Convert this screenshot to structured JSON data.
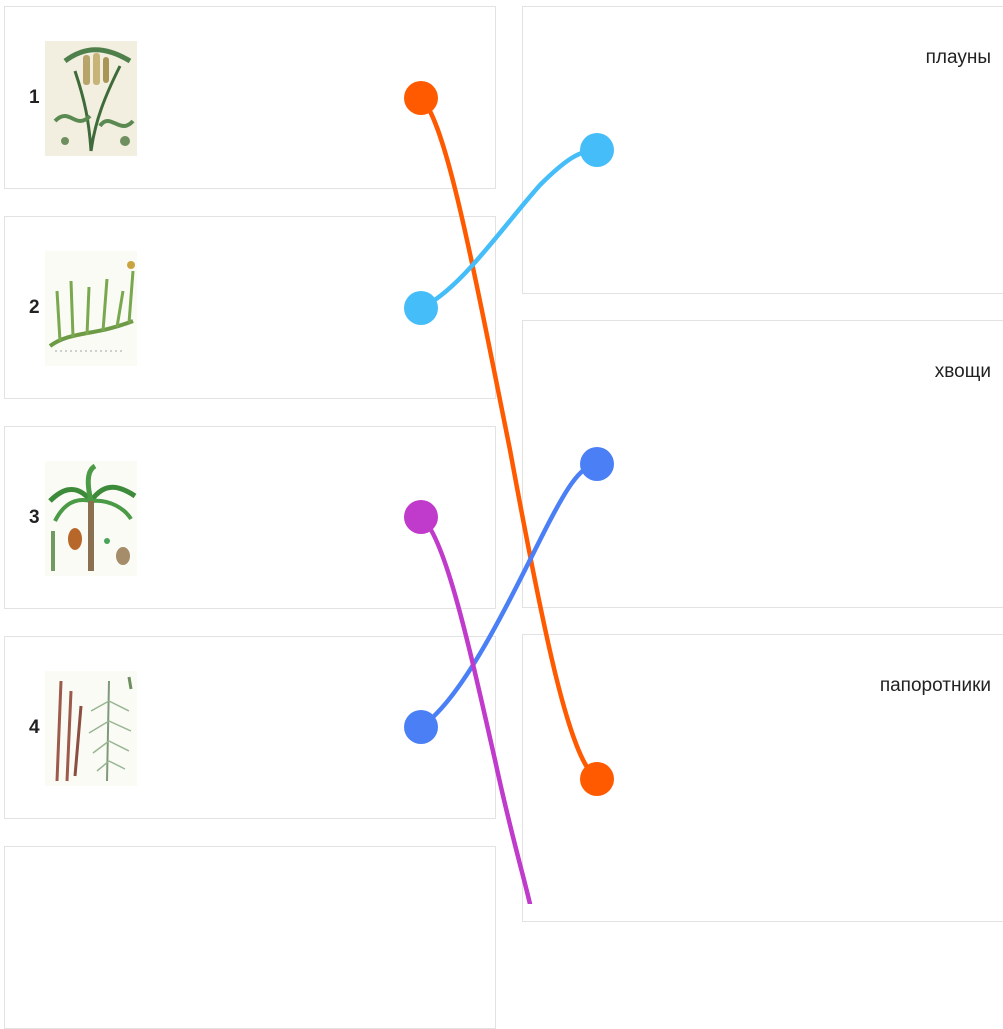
{
  "items": [
    {
      "number": "1",
      "image": "club-moss-illustration"
    },
    {
      "number": "2",
      "image": "club-moss-branching-illustration"
    },
    {
      "number": "3",
      "image": "cycad-palm-illustration"
    },
    {
      "number": "4",
      "image": "horsetail-illustration"
    },
    {
      "number": "",
      "image": ""
    }
  ],
  "categories": [
    {
      "label": "плауны"
    },
    {
      "label": "хвощи"
    },
    {
      "label": "папоротники"
    }
  ],
  "colors": {
    "orange": "#ff5a00",
    "light_blue": "#45bdf8",
    "blue": "#4b7ff5",
    "purple": "#c03acb",
    "card_border": "#e2e2e2"
  },
  "connections": [
    {
      "from_item": "1",
      "to": "папоротники",
      "color": "#ff5a00"
    },
    {
      "from_item": "2",
      "to": "плауны",
      "color": "#45bdf8"
    },
    {
      "from_item": "3",
      "to": "",
      "color": "#c03acb"
    },
    {
      "from_item": "4",
      "to": "хвощи",
      "color": "#4b7ff5"
    }
  ]
}
